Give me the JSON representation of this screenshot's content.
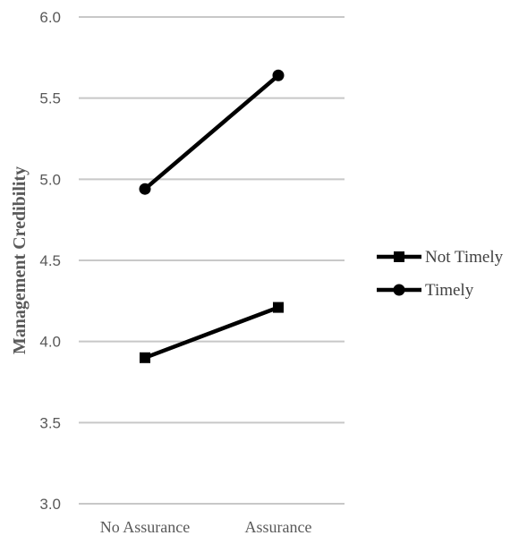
{
  "chart_data": {
    "type": "line",
    "title": "",
    "xlabel": "",
    "ylabel": "Management Credibility",
    "categories": [
      "No Assurance",
      "Assurance"
    ],
    "ylim": [
      3.0,
      6.0
    ],
    "yticks": [
      "3.0",
      "3.5",
      "4.0",
      "4.5",
      "5.0",
      "5.5",
      "6.0"
    ],
    "grid": true,
    "legend_position": "right",
    "series": [
      {
        "name": "Not Timely",
        "values": [
          3.9,
          4.21
        ],
        "marker": "square",
        "color": "#000000"
      },
      {
        "name": "Timely",
        "values": [
          4.94,
          5.64
        ],
        "marker": "circle",
        "color": "#000000"
      }
    ],
    "gridline_color": "#c8c8c8"
  }
}
